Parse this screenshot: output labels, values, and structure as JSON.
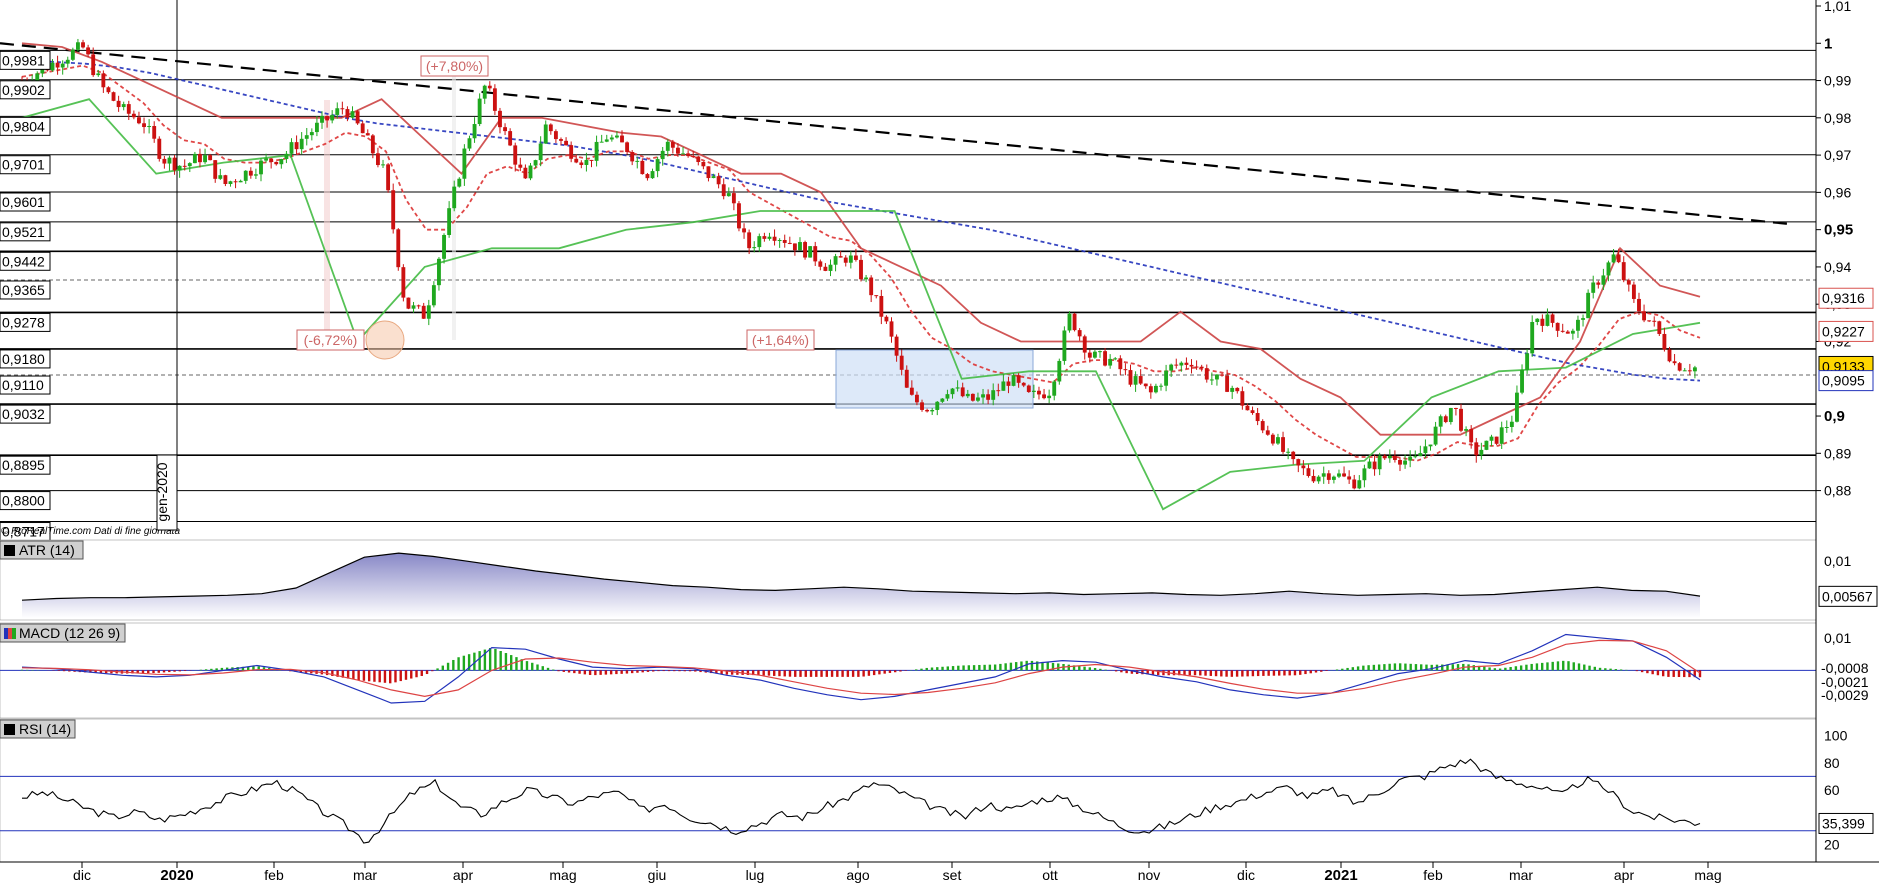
{
  "chart_data": [
    {
      "type": "candlestick",
      "panel": "price",
      "copyright": "© ProRealTime.com  Dati di fine giornata",
      "x_ticks": [
        "dic",
        "2020",
        "feb",
        "mar",
        "apr",
        "mag",
        "giu",
        "lug",
        "ago",
        "set",
        "ott",
        "nov",
        "dic",
        "2021",
        "feb",
        "mar",
        "apr",
        "mag"
      ],
      "x_bold_ticks": [
        "2020",
        "2021"
      ],
      "vertical_marker_label": "gen-2020",
      "y_ticks": [
        "1,01",
        "1",
        "0,99",
        "0,98",
        "0,97",
        "0,96",
        "0,95",
        "0,94",
        "0,93",
        "0,92",
        "0,9",
        "0,89",
        "0,88"
      ],
      "y_bold_ticks": [
        "1",
        "0,95",
        "0,9"
      ],
      "ylim": [
        0.8705,
        1.01
      ],
      "horizontal_levels": [
        {
          "label": "0,9981",
          "value": 0.9981,
          "style": "solid"
        },
        {
          "label": "0,9902",
          "value": 0.9902,
          "style": "solid"
        },
        {
          "label": "0,9804",
          "value": 0.9804,
          "style": "solid"
        },
        {
          "label": "0,9701",
          "value": 0.9701,
          "style": "solid"
        },
        {
          "label": "0,9601",
          "value": 0.9601,
          "style": "solid"
        },
        {
          "label": "0,9521",
          "value": 0.9521,
          "style": "solid"
        },
        {
          "label": "0,9442",
          "value": 0.9442,
          "style": "solid"
        },
        {
          "label": "0,9365",
          "value": 0.9365,
          "style": "dashed"
        },
        {
          "label": "0,9278",
          "value": 0.9278,
          "style": "solid"
        },
        {
          "label": "0,9180",
          "value": 0.918,
          "style": "solid"
        },
        {
          "label": "0,9110",
          "value": 0.911,
          "style": "dashed"
        },
        {
          "label": "0,9032",
          "value": 0.9032,
          "style": "solid"
        },
        {
          "label": "0,8895",
          "value": 0.8895,
          "style": "solid"
        },
        {
          "label": "0,8800",
          "value": 0.88,
          "style": "solid"
        },
        {
          "label": "0,8717",
          "value": 0.8717,
          "style": "solid"
        }
      ],
      "value_tags": [
        {
          "label": "0,9316",
          "value": 0.9316,
          "color": "#d9534f",
          "bg": "#ffffff"
        },
        {
          "label": "0,9227",
          "value": 0.9227,
          "color": "#d9534f",
          "bg": "#ffffff"
        },
        {
          "label": "0,9133",
          "value": 0.9133,
          "color": "#000000",
          "bg": "#ffd700"
        },
        {
          "label": "0,9095",
          "value": 0.9095,
          "color": "#2233bb",
          "bg": "#ffffff"
        }
      ],
      "annotations": [
        {
          "text": "(+7,80%)",
          "color": "#cc6666"
        },
        {
          "text": "(-6,72%)",
          "color": "#cc6666"
        },
        {
          "text": "(+1,64%)",
          "color": "#cc6666"
        }
      ],
      "trendline": {
        "from": 1.0,
        "to": 0.9515,
        "style": "dashed",
        "color": "#000000"
      },
      "series": [
        {
          "name": "close",
          "values": [
            0.99,
            0.993,
            0.996,
            0.999,
            0.988,
            0.982,
            0.979,
            0.969,
            0.967,
            0.97,
            0.962,
            0.965,
            0.968,
            0.97,
            0.975,
            0.979,
            0.983,
            0.975,
            0.965,
            0.93,
            0.927,
            0.95,
            0.972,
            0.989,
            0.975,
            0.962,
            0.978,
            0.972,
            0.968,
            0.975,
            0.972,
            0.965,
            0.973,
            0.97,
            0.965,
            0.96,
            0.945,
            0.95,
            0.947,
            0.944,
            0.94,
            0.943,
            0.935,
            0.923,
            0.905,
            0.902,
            0.908,
            0.904,
            0.905,
            0.91,
            0.905,
            0.907,
            0.927,
            0.916,
            0.915,
            0.91,
            0.906,
            0.913,
            0.915,
            0.91,
            0.908,
            0.9,
            0.895,
            0.887,
            0.884,
            0.885,
            0.882,
            0.887,
            0.89,
            0.887,
            0.895,
            0.903,
            0.89,
            0.893,
            0.9,
            0.927,
            0.925,
            0.922,
            0.935,
            0.943,
            0.93,
            0.924,
            0.914,
            0.913
          ]
        },
        {
          "name": "ema_20",
          "color": "#dd3333",
          "style": "dashed",
          "values": [
            0.991,
            0.992,
            0.993,
            0.994,
            0.992,
            0.988,
            0.984,
            0.978,
            0.974,
            0.973,
            0.969,
            0.968,
            0.968,
            0.969,
            0.971,
            0.973,
            0.976,
            0.975,
            0.971,
            0.958,
            0.95,
            0.95,
            0.956,
            0.965,
            0.967,
            0.965,
            0.969,
            0.97,
            0.969,
            0.971,
            0.971,
            0.969,
            0.97,
            0.97,
            0.968,
            0.966,
            0.96,
            0.957,
            0.954,
            0.951,
            0.948,
            0.947,
            0.943,
            0.937,
            0.928,
            0.921,
            0.918,
            0.914,
            0.912,
            0.911,
            0.91,
            0.909,
            0.914,
            0.915,
            0.915,
            0.914,
            0.912,
            0.912,
            0.913,
            0.912,
            0.911,
            0.908,
            0.904,
            0.899,
            0.895,
            0.892,
            0.889,
            0.889,
            0.889,
            0.888,
            0.89,
            0.893,
            0.892,
            0.892,
            0.894,
            0.903,
            0.909,
            0.913,
            0.919,
            0.926,
            0.928,
            0.927,
            0.923,
            0.921
          ]
        },
        {
          "name": "sma_200",
          "color": "#2233bb",
          "style": "dashed",
          "values": [
            0.9955,
            0.995,
            0.9945,
            0.9935,
            0.992,
            0.99,
            0.988,
            0.986,
            0.984,
            0.982,
            0.98,
            0.9785,
            0.9775,
            0.9765,
            0.9755,
            0.9745,
            0.9735,
            0.9725,
            0.971,
            0.9695,
            0.9675,
            0.9655,
            0.9635,
            0.9615,
            0.9595,
            0.9575,
            0.956,
            0.9545,
            0.953,
            0.9515,
            0.95,
            0.948,
            0.946,
            0.944,
            0.942,
            0.94,
            0.938,
            0.936,
            0.934,
            0.932,
            0.93,
            0.928,
            0.926,
            0.924,
            0.922,
            0.92,
            0.918,
            0.916,
            0.914,
            0.9125,
            0.911,
            0.91,
            0.9095
          ]
        },
        {
          "name": "supertrend_upper",
          "color": "#cc4444",
          "style": "solid",
          "values": [
            1.0,
            0.999,
            0.995,
            0.99,
            0.985,
            0.98,
            0.98,
            0.98,
            0.98,
            0.985,
            0.975,
            0.965,
            0.98,
            0.98,
            0.978,
            0.976,
            0.975,
            0.97,
            0.965,
            0.965,
            0.96,
            0.945,
            0.94,
            0.935,
            0.925,
            0.92,
            0.92,
            0.92,
            0.92,
            0.928,
            0.92,
            0.918,
            0.91,
            0.905,
            0.895,
            0.895,
            0.895,
            0.9,
            0.905,
            0.92,
            0.945,
            0.935,
            0.932
          ]
        },
        {
          "name": "supertrend_lower",
          "color": "#44bb44",
          "style": "solid",
          "values": [
            0.98,
            0.985,
            0.965,
            0.968,
            0.97,
            0.92,
            0.94,
            0.945,
            0.945,
            0.95,
            0.952,
            0.955,
            0.955,
            0.955,
            0.91,
            0.912,
            0.912,
            0.875,
            0.885,
            0.887,
            0.888,
            0.905,
            0.912,
            0.913,
            0.922,
            0.925
          ]
        }
      ]
    },
    {
      "type": "area",
      "panel": "indicator",
      "title": "ATR (14)",
      "y_ticks": [
        "0,01"
      ],
      "value_tag": "0,00567",
      "ylim": [
        0.003,
        0.012
      ],
      "series": [
        {
          "name": "ATR (14)",
          "values": [
            0.0052,
            0.0054,
            0.0055,
            0.0055,
            0.0056,
            0.0057,
            0.0058,
            0.006,
            0.0067,
            0.0086,
            0.0105,
            0.011,
            0.0106,
            0.01,
            0.0094,
            0.0088,
            0.0083,
            0.0078,
            0.0074,
            0.007,
            0.0068,
            0.0065,
            0.0064,
            0.0066,
            0.0068,
            0.0066,
            0.0063,
            0.0062,
            0.0061,
            0.006,
            0.0061,
            0.0059,
            0.006,
            0.0061,
            0.0059,
            0.0058,
            0.006,
            0.0063,
            0.006,
            0.0058,
            0.0059,
            0.006,
            0.0058,
            0.0059,
            0.0062,
            0.0065,
            0.0068,
            0.0064,
            0.0063,
            0.0057
          ]
        }
      ]
    },
    {
      "type": "line",
      "panel": "indicator",
      "title": "MACD (12 26 9)",
      "y_ticks": [
        "0,01"
      ],
      "value_tags": [
        {
          "label": "-0,0008",
          "color": "#d9534f"
        },
        {
          "label": "-0,0021",
          "color": "#2233bb"
        },
        {
          "label": "-0,0029",
          "color": "#2233bb"
        }
      ],
      "ylim": [
        -0.014,
        0.013
      ],
      "series": [
        {
          "name": "MACD",
          "color": "#2233bb",
          "values": [
            0.001,
            0.0005,
            -0.0005,
            -0.0015,
            -0.002,
            -0.0015,
            0.0,
            0.0015,
            0.0,
            -0.002,
            -0.006,
            -0.01,
            -0.0095,
            -0.002,
            0.007,
            0.0065,
            0.0035,
            0.001,
            0.0005,
            0.001,
            0.0005,
            -0.0015,
            -0.003,
            -0.0055,
            -0.0075,
            -0.009,
            -0.008,
            -0.006,
            -0.004,
            -0.002,
            0.002,
            0.003,
            0.0025,
            0.0,
            -0.002,
            -0.0035,
            -0.006,
            -0.0075,
            -0.0085,
            -0.007,
            -0.004,
            -0.001,
            0.0005,
            0.003,
            0.002,
            0.006,
            0.011,
            0.01,
            0.009,
            0.004,
            -0.0029
          ]
        },
        {
          "name": "Signal",
          "color": "#dd4444",
          "values": [
            0.0008,
            0.0006,
            0.0002,
            -0.0005,
            -0.0012,
            -0.0014,
            -0.0008,
            0.0002,
            0.0003,
            -0.0007,
            -0.003,
            -0.006,
            -0.008,
            -0.006,
            0.0,
            0.0035,
            0.0038,
            0.0025,
            0.0015,
            0.0012,
            0.0008,
            -0.0002,
            -0.0015,
            -0.0035,
            -0.0055,
            -0.007,
            -0.0074,
            -0.0068,
            -0.0055,
            -0.0038,
            -0.001,
            0.001,
            0.0018,
            0.001,
            -0.0005,
            -0.002,
            -0.004,
            -0.0058,
            -0.007,
            -0.007,
            -0.0055,
            -0.0032,
            -0.0012,
            0.001,
            0.0015,
            0.004,
            0.008,
            0.0092,
            0.009,
            0.006,
            -0.0008
          ]
        }
      ]
    },
    {
      "type": "line",
      "panel": "indicator",
      "title": "RSI (14)",
      "y_ticks": [
        "100",
        "80",
        "60",
        "20"
      ],
      "bands": [
        70,
        30
      ],
      "value_tag": "35,399",
      "ylim": [
        10,
        110
      ],
      "series": [
        {
          "name": "RSI (14)",
          "values": [
            55,
            58,
            52,
            45,
            40,
            44,
            38,
            42,
            48,
            55,
            60,
            66,
            58,
            45,
            35,
            22,
            40,
            58,
            65,
            48,
            42,
            52,
            60,
            55,
            50,
            56,
            58,
            45,
            50,
            40,
            36,
            30,
            35,
            42,
            40,
            48,
            55,
            65,
            60,
            52,
            45,
            40,
            50,
            45,
            52,
            55,
            48,
            40,
            32,
            30,
            35,
            42,
            48,
            52,
            58,
            62,
            55,
            60,
            50,
            58,
            68,
            70,
            78,
            82,
            70,
            66,
            62,
            56,
            68,
            60,
            45,
            40,
            38,
            35.399
          ]
        }
      ]
    }
  ],
  "colors": {
    "bull": "#1fa81f",
    "bear": "#cc1111",
    "box_fill": "#cfe0f7",
    "circle": "#f5c6a8",
    "atr_fill": "#b9b9e0"
  }
}
